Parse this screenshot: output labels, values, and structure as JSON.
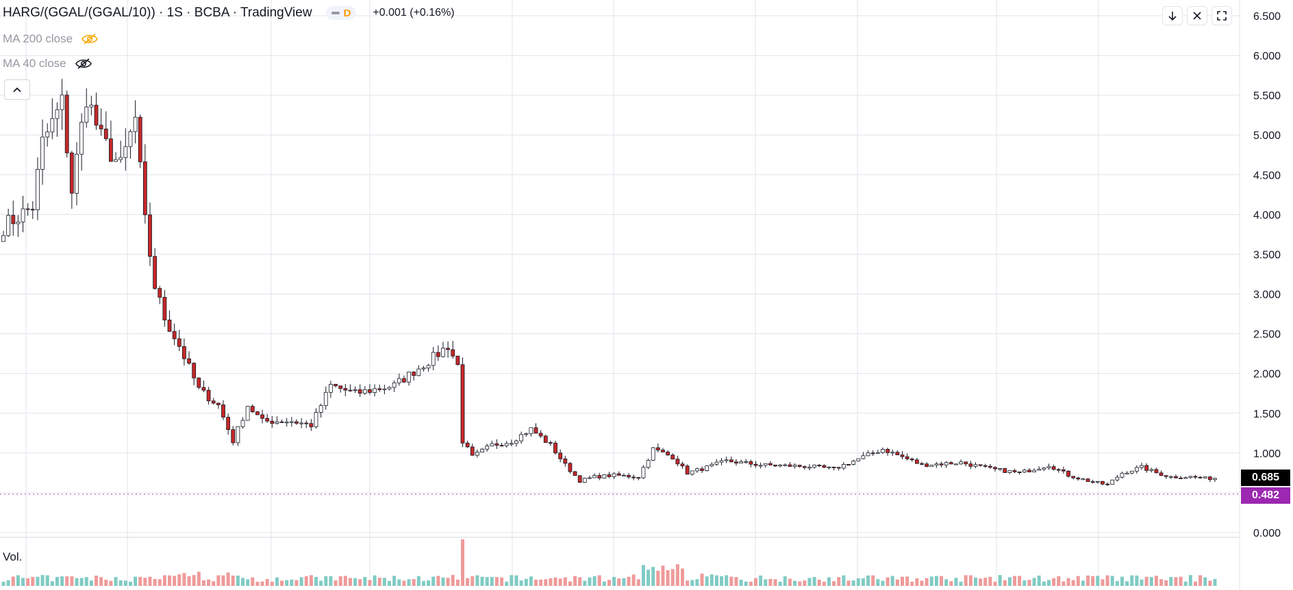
{
  "header": {
    "title": "HARG/(GGAL/(GGAL/10)) · 1S · BCBA · TradingView",
    "interval_badge": "D",
    "change": "+0.001 (+0.16%)"
  },
  "indicators": [
    {
      "label": "MA 200 close",
      "eye_color": "#f7a600"
    },
    {
      "label": "MA 40 close",
      "eye_color": "#131722"
    }
  ],
  "volume_label": "Vol.",
  "price_badges": {
    "last": "0.685",
    "low": "0.482"
  },
  "colors": {
    "up": "#ffffff",
    "down": "#c62828",
    "vol_up": "#80cbc4",
    "vol_down": "#ef9a9a",
    "grid": "#e0e3eb",
    "low_line": "#c77dd7"
  },
  "chart_data": {
    "type": "candlestick",
    "title": "HARG/(GGAL/(GGAL/10)) · 1S · BCBA",
    "y_ticks": [
      "0.000",
      "0.500",
      "1.000",
      "1.500",
      "2.000",
      "2.500",
      "3.000",
      "3.500",
      "4.000",
      "4.500",
      "5.000",
      "5.500",
      "6.000",
      "6.500"
    ],
    "ylim": [
      0,
      6.5
    ],
    "last_price": 0.685,
    "low_price": 0.482,
    "close_anchors": [
      [
        0,
        3.85
      ],
      [
        6,
        4.1
      ],
      [
        8,
        4.9
      ],
      [
        12,
        5.4
      ],
      [
        14,
        4.3
      ],
      [
        17,
        5.5
      ],
      [
        20,
        4.95
      ],
      [
        24,
        4.6
      ],
      [
        27,
        5.2
      ],
      [
        29,
        3.9
      ],
      [
        31,
        3.1
      ],
      [
        33,
        2.7
      ],
      [
        36,
        2.35
      ],
      [
        40,
        1.8
      ],
      [
        44,
        1.6
      ],
      [
        47,
        1.15
      ],
      [
        50,
        1.6
      ],
      [
        53,
        1.4
      ],
      [
        59,
        1.4
      ],
      [
        63,
        1.35
      ],
      [
        67,
        1.85
      ],
      [
        72,
        1.75
      ],
      [
        80,
        1.85
      ],
      [
        88,
        2.2
      ],
      [
        91,
        2.35
      ],
      [
        93,
        2.1
      ],
      [
        94,
        1.15
      ],
      [
        96,
        0.95
      ],
      [
        100,
        1.1
      ],
      [
        104,
        1.15
      ],
      [
        108,
        1.3
      ],
      [
        112,
        1.1
      ],
      [
        115,
        0.85
      ],
      [
        118,
        0.65
      ],
      [
        121,
        0.7
      ],
      [
        125,
        0.72
      ],
      [
        130,
        0.7
      ],
      [
        133,
        1.05
      ],
      [
        137,
        0.95
      ],
      [
        140,
        0.75
      ],
      [
        143,
        0.8
      ],
      [
        148,
        0.9
      ],
      [
        155,
        0.85
      ],
      [
        165,
        0.83
      ],
      [
        170,
        0.8
      ],
      [
        176,
        0.95
      ],
      [
        180,
        1.05
      ],
      [
        184,
        0.95
      ],
      [
        188,
        0.85
      ],
      [
        196,
        0.88
      ],
      [
        202,
        0.8
      ],
      [
        208,
        0.75
      ],
      [
        214,
        0.85
      ],
      [
        218,
        0.72
      ],
      [
        222,
        0.65
      ],
      [
        226,
        0.6
      ],
      [
        229,
        0.75
      ],
      [
        233,
        0.82
      ],
      [
        236,
        0.75
      ],
      [
        239,
        0.7
      ],
      [
        243,
        0.7
      ],
      [
        246,
        0.68
      ],
      [
        248,
        0.685
      ]
    ],
    "candle_count": 249,
    "volume_spike_index": 94
  },
  "buttons": {
    "collapse": "chevron-up-icon",
    "download": "arrow-down-icon",
    "close": "close-icon",
    "fullscreen": "fullscreen-icon"
  }
}
